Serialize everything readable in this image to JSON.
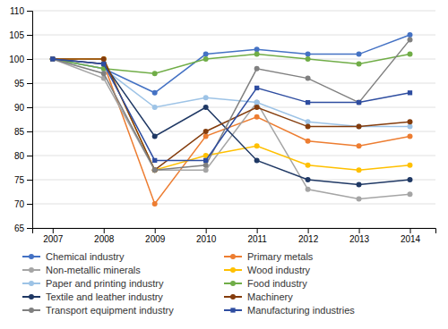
{
  "chart_data": {
    "type": "line",
    "x": [
      2007,
      2008,
      2009,
      2010,
      2011,
      2012,
      2013,
      2014
    ],
    "xlim": [
      2006.6,
      2014.5
    ],
    "xticks": [
      2007,
      2008,
      2009,
      2010,
      2011,
      2012,
      2013,
      2014
    ],
    "ylim": [
      65,
      110
    ],
    "yticks": [
      65,
      70,
      75,
      80,
      85,
      90,
      95,
      100,
      105,
      110
    ],
    "grid": "y",
    "legend": "bottom",
    "series": [
      {
        "name": "Chemical industry",
        "color": "#4472C4",
        "marker": "circle",
        "values": [
          100,
          98,
          93,
          101,
          102,
          101,
          101,
          105
        ]
      },
      {
        "name": "Primary metals",
        "color": "#ED7D31",
        "marker": "circle",
        "values": [
          100,
          99,
          70,
          84,
          88,
          83,
          82,
          84
        ]
      },
      {
        "name": "Non-metallic minerals",
        "color": "#A5A5A5",
        "marker": "circle",
        "values": [
          100,
          96,
          77,
          77,
          91,
          73,
          71,
          72
        ]
      },
      {
        "name": "Wood industry",
        "color": "#FFC000",
        "marker": "circle",
        "values": [
          100,
          100,
          77,
          80,
          82,
          78,
          77,
          78
        ]
      },
      {
        "name": "Paper and printing industry",
        "color": "#9DC3E6",
        "marker": "circle",
        "values": [
          100,
          98,
          90,
          92,
          91,
          87,
          86,
          86
        ]
      },
      {
        "name": "Food industry",
        "color": "#70AD47",
        "marker": "circle",
        "values": [
          100,
          98,
          97,
          100,
          101,
          100,
          99,
          101
        ]
      },
      {
        "name": "Textile and leather industry",
        "color": "#1F3864",
        "marker": "circle",
        "values": [
          100,
          99,
          84,
          90,
          79,
          75,
          74,
          75
        ]
      },
      {
        "name": "Machinery",
        "color": "#843C0C",
        "marker": "circle",
        "values": [
          100,
          100,
          77,
          85,
          90,
          86,
          86,
          87
        ]
      },
      {
        "name": "Transport equipment industry",
        "color": "#808080",
        "marker": "circle",
        "values": [
          100,
          97,
          77,
          78,
          98,
          96,
          91,
          104
        ]
      },
      {
        "name": "Manufacturing industries",
        "color": "#2E4DA0",
        "marker": "square",
        "values": [
          100,
          99,
          79,
          79,
          94,
          91,
          91,
          93
        ]
      }
    ]
  }
}
